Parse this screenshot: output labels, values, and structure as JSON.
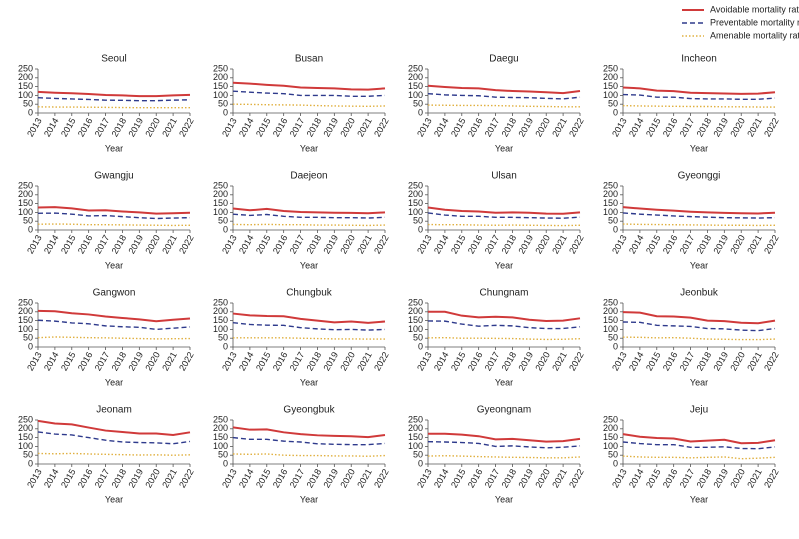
{
  "legend": [
    {
      "name": "Avoidable mortality rate",
      "color": "#d03a3a",
      "dash": "solid"
    },
    {
      "name": "Preventable mortality rate",
      "color": "#2e3a8c",
      "dash": "dashed"
    },
    {
      "name": "Amenable mortality rate",
      "color": "#e0b040",
      "dash": "dotted"
    }
  ],
  "chart_data": [
    {
      "type": "line",
      "title": "Seoul",
      "xlabel": "Year",
      "categories": [
        "2013",
        "2014",
        "2015",
        "2016",
        "2017",
        "2018",
        "2019",
        "2020",
        "2021",
        "2022"
      ],
      "ylim": [
        0,
        250
      ],
      "yticks": [
        0,
        50,
        100,
        150,
        200,
        250
      ],
      "series": [
        {
          "values": [
            120,
            115,
            112,
            108,
            102,
            100,
            96,
            96,
            100,
            103
          ]
        },
        {
          "values": [
            87,
            83,
            80,
            77,
            73,
            72,
            70,
            70,
            73,
            75
          ]
        },
        {
          "values": [
            35,
            34,
            34,
            33,
            32,
            31,
            30,
            30,
            30,
            30
          ]
        }
      ]
    },
    {
      "type": "line",
      "title": "Busan",
      "xlabel": "Year",
      "categories": [
        "2013",
        "2014",
        "2015",
        "2016",
        "2017",
        "2018",
        "2019",
        "2020",
        "2021",
        "2022"
      ],
      "ylim": [
        0,
        250
      ],
      "yticks": [
        0,
        50,
        100,
        150,
        200,
        250
      ],
      "series": [
        {
          "values": [
            172,
            167,
            160,
            155,
            145,
            142,
            140,
            134,
            133,
            140
          ]
        },
        {
          "values": [
            124,
            118,
            113,
            110,
            100,
            100,
            100,
            95,
            95,
            100
          ]
        },
        {
          "values": [
            50,
            49,
            47,
            46,
            45,
            42,
            40,
            39,
            38,
            40
          ]
        }
      ]
    },
    {
      "type": "line",
      "title": "Daegu",
      "xlabel": "Year",
      "categories": [
        "2013",
        "2014",
        "2015",
        "2016",
        "2017",
        "2018",
        "2019",
        "2020",
        "2021",
        "2022"
      ],
      "ylim": [
        0,
        250
      ],
      "yticks": [
        0,
        50,
        100,
        150,
        200,
        250
      ],
      "series": [
        {
          "values": [
            155,
            148,
            142,
            140,
            130,
            125,
            122,
            118,
            113,
            125
          ]
        },
        {
          "values": [
            110,
            103,
            100,
            98,
            90,
            88,
            87,
            83,
            80,
            90
          ]
        },
        {
          "values": [
            45,
            44,
            43,
            43,
            42,
            40,
            38,
            37,
            35,
            35
          ]
        }
      ]
    },
    {
      "type": "line",
      "title": "Incheon",
      "xlabel": "Year",
      "categories": [
        "2013",
        "2014",
        "2015",
        "2016",
        "2017",
        "2018",
        "2019",
        "2020",
        "2021",
        "2022"
      ],
      "ylim": [
        0,
        250
      ],
      "yticks": [
        0,
        50,
        100,
        150,
        200,
        250
      ],
      "series": [
        {
          "values": [
            145,
            140,
            127,
            124,
            115,
            113,
            111,
            109,
            110,
            118
          ]
        },
        {
          "values": [
            105,
            102,
            90,
            90,
            82,
            80,
            80,
            78,
            78,
            85
          ]
        },
        {
          "values": [
            42,
            40,
            39,
            38,
            37,
            37,
            35,
            35,
            34,
            34
          ]
        }
      ]
    },
    {
      "type": "line",
      "title": "Gwangju",
      "xlabel": "Year",
      "categories": [
        "2013",
        "2014",
        "2015",
        "2016",
        "2017",
        "2018",
        "2019",
        "2020",
        "2021",
        "2022"
      ],
      "ylim": [
        0,
        250
      ],
      "yticks": [
        0,
        50,
        100,
        150,
        200,
        250
      ],
      "series": [
        {
          "values": [
            128,
            130,
            123,
            111,
            112,
            105,
            100,
            93,
            95,
            98
          ]
        },
        {
          "values": [
            95,
            96,
            90,
            80,
            82,
            76,
            70,
            65,
            68,
            70
          ]
        },
        {
          "values": [
            33,
            34,
            33,
            30,
            30,
            29,
            28,
            27,
            26,
            27
          ]
        }
      ]
    },
    {
      "type": "line",
      "title": "Daejeon",
      "xlabel": "Year",
      "categories": [
        "2013",
        "2014",
        "2015",
        "2016",
        "2017",
        "2018",
        "2019",
        "2020",
        "2021",
        "2022"
      ],
      "ylim": [
        0,
        250
      ],
      "yticks": [
        0,
        50,
        100,
        150,
        200,
        250
      ],
      "series": [
        {
          "values": [
            122,
            112,
            120,
            108,
            102,
            100,
            98,
            97,
            95,
            100
          ]
        },
        {
          "values": [
            90,
            83,
            88,
            78,
            72,
            72,
            70,
            70,
            68,
            72
          ]
        },
        {
          "values": [
            32,
            30,
            32,
            30,
            30,
            28,
            28,
            27,
            26,
            28
          ]
        }
      ]
    },
    {
      "type": "line",
      "title": "Ulsan",
      "xlabel": "Year",
      "categories": [
        "2013",
        "2014",
        "2015",
        "2016",
        "2017",
        "2018",
        "2019",
        "2020",
        "2021",
        "2022"
      ],
      "ylim": [
        0,
        250
      ],
      "yticks": [
        0,
        50,
        100,
        150,
        200,
        250
      ],
      "series": [
        {
          "values": [
            128,
            115,
            108,
            105,
            98,
            100,
            98,
            93,
            92,
            100
          ]
        },
        {
          "values": [
            97,
            85,
            78,
            78,
            72,
            72,
            70,
            68,
            67,
            73
          ]
        },
        {
          "values": [
            31,
            30,
            30,
            28,
            27,
            28,
            27,
            26,
            25,
            27
          ]
        }
      ]
    },
    {
      "type": "line",
      "title": "Gyeonggi",
      "xlabel": "Year",
      "categories": [
        "2013",
        "2014",
        "2015",
        "2016",
        "2017",
        "2018",
        "2019",
        "2020",
        "2021",
        "2022"
      ],
      "ylim": [
        0,
        250
      ],
      "yticks": [
        0,
        50,
        100,
        150,
        200,
        250
      ],
      "series": [
        {
          "values": [
            130,
            122,
            115,
            110,
            104,
            100,
            97,
            95,
            94,
            98
          ]
        },
        {
          "values": [
            97,
            90,
            85,
            80,
            76,
            73,
            70,
            69,
            68,
            70
          ]
        },
        {
          "values": [
            34,
            32,
            31,
            30,
            29,
            28,
            27,
            27,
            26,
            27
          ]
        }
      ]
    },
    {
      "type": "line",
      "title": "Gangwon",
      "xlabel": "Year",
      "categories": [
        "2013",
        "2014",
        "2015",
        "2016",
        "2017",
        "2018",
        "2019",
        "2020",
        "2021",
        "2022"
      ],
      "ylim": [
        0,
        250
      ],
      "yticks": [
        0,
        50,
        100,
        150,
        200,
        250
      ],
      "series": [
        {
          "values": [
            205,
            203,
            192,
            185,
            173,
            165,
            157,
            146,
            155,
            162
          ]
        },
        {
          "values": [
            152,
            147,
            137,
            132,
            120,
            115,
            112,
            100,
            107,
            114
          ]
        },
        {
          "values": [
            53,
            57,
            55,
            53,
            52,
            50,
            48,
            46,
            47,
            48
          ]
        }
      ]
    },
    {
      "type": "line",
      "title": "Chungbuk",
      "xlabel": "Year",
      "categories": [
        "2013",
        "2014",
        "2015",
        "2016",
        "2017",
        "2018",
        "2019",
        "2020",
        "2021",
        "2022"
      ],
      "ylim": [
        0,
        250
      ],
      "yticks": [
        0,
        50,
        100,
        150,
        200,
        250
      ],
      "series": [
        {
          "values": [
            190,
            180,
            176,
            175,
            160,
            150,
            140,
            145,
            137,
            145
          ]
        },
        {
          "values": [
            138,
            128,
            124,
            123,
            110,
            103,
            98,
            100,
            96,
            100
          ]
        },
        {
          "values": [
            52,
            52,
            52,
            52,
            50,
            48,
            46,
            46,
            45,
            45
          ]
        }
      ]
    },
    {
      "type": "line",
      "title": "Chungnam",
      "xlabel": "Year",
      "categories": [
        "2013",
        "2014",
        "2015",
        "2016",
        "2017",
        "2018",
        "2019",
        "2020",
        "2021",
        "2022"
      ],
      "ylim": [
        0,
        250
      ],
      "yticks": [
        0,
        50,
        100,
        150,
        200,
        250
      ],
      "series": [
        {
          "values": [
            200,
            200,
            178,
            168,
            172,
            168,
            155,
            148,
            150,
            163
          ]
        },
        {
          "values": [
            148,
            147,
            130,
            118,
            123,
            120,
            110,
            105,
            105,
            115
          ]
        },
        {
          "values": [
            52,
            53,
            50,
            50,
            49,
            48,
            45,
            43,
            44,
            47
          ]
        }
      ]
    },
    {
      "type": "line",
      "title": "Jeonbuk",
      "xlabel": "Year",
      "categories": [
        "2013",
        "2014",
        "2015",
        "2016",
        "2017",
        "2018",
        "2019",
        "2020",
        "2021",
        "2022"
      ],
      "ylim": [
        0,
        250
      ],
      "yticks": [
        0,
        50,
        100,
        150,
        200,
        250
      ],
      "series": [
        {
          "values": [
            198,
            195,
            175,
            173,
            167,
            150,
            147,
            138,
            135,
            150
          ]
        },
        {
          "values": [
            142,
            140,
            123,
            120,
            117,
            105,
            103,
            96,
            93,
            105
          ]
        },
        {
          "values": [
            56,
            55,
            52,
            53,
            50,
            45,
            44,
            42,
            42,
            45
          ]
        }
      ]
    },
    {
      "type": "line",
      "title": "Jeonam",
      "xlabel": "Year",
      "categories": [
        "2013",
        "2014",
        "2015",
        "2016",
        "2017",
        "2018",
        "2019",
        "2020",
        "2021",
        "2022"
      ],
      "ylim": [
        0,
        250
      ],
      "yticks": [
        0,
        50,
        100,
        150,
        200,
        250
      ],
      "series": [
        {
          "values": [
            245,
            230,
            225,
            207,
            190,
            182,
            173,
            173,
            165,
            180
          ]
        },
        {
          "values": [
            182,
            170,
            165,
            150,
            135,
            125,
            122,
            120,
            115,
            128
          ]
        },
        {
          "values": [
            60,
            58,
            60,
            57,
            55,
            53,
            51,
            52,
            50,
            52
          ]
        }
      ]
    },
    {
      "type": "line",
      "title": "Gyeongbuk",
      "xlabel": "Year",
      "categories": [
        "2013",
        "2014",
        "2015",
        "2016",
        "2017",
        "2018",
        "2019",
        "2020",
        "2021",
        "2022"
      ],
      "ylim": [
        0,
        250
      ],
      "yticks": [
        0,
        50,
        100,
        150,
        200,
        250
      ],
      "series": [
        {
          "values": [
            208,
            195,
            197,
            180,
            170,
            163,
            160,
            158,
            153,
            165
          ]
        },
        {
          "values": [
            150,
            140,
            140,
            130,
            125,
            115,
            112,
            110,
            110,
            117
          ]
        },
        {
          "values": [
            57,
            55,
            57,
            50,
            48,
            48,
            46,
            46,
            44,
            48
          ]
        }
      ]
    },
    {
      "type": "line",
      "title": "Gyeongnam",
      "xlabel": "Year",
      "categories": [
        "2013",
        "2014",
        "2015",
        "2016",
        "2017",
        "2018",
        "2019",
        "2020",
        "2021",
        "2022"
      ],
      "ylim": [
        0,
        250
      ],
      "yticks": [
        0,
        50,
        100,
        150,
        200,
        250
      ],
      "series": [
        {
          "values": [
            172,
            172,
            167,
            158,
            140,
            143,
            135,
            127,
            130,
            143
          ]
        },
        {
          "values": [
            127,
            125,
            122,
            117,
            100,
            103,
            97,
            92,
            95,
            103
          ]
        },
        {
          "values": [
            45,
            47,
            45,
            42,
            40,
            38,
            37,
            35,
            35,
            40
          ]
        }
      ]
    },
    {
      "type": "line",
      "title": "Jeju",
      "xlabel": "Year",
      "categories": [
        "2013",
        "2014",
        "2015",
        "2016",
        "2017",
        "2018",
        "2019",
        "2020",
        "2021",
        "2022"
      ],
      "ylim": [
        0,
        250
      ],
      "yticks": [
        0,
        50,
        100,
        150,
        200,
        250
      ],
      "series": [
        {
          "values": [
            170,
            155,
            148,
            145,
            128,
            133,
            138,
            118,
            120,
            135
          ]
        },
        {
          "values": [
            125,
            116,
            110,
            110,
            95,
            95,
            98,
            88,
            87,
            97
          ]
        },
        {
          "values": [
            45,
            40,
            38,
            38,
            35,
            38,
            40,
            30,
            33,
            38
          ]
        }
      ]
    }
  ]
}
